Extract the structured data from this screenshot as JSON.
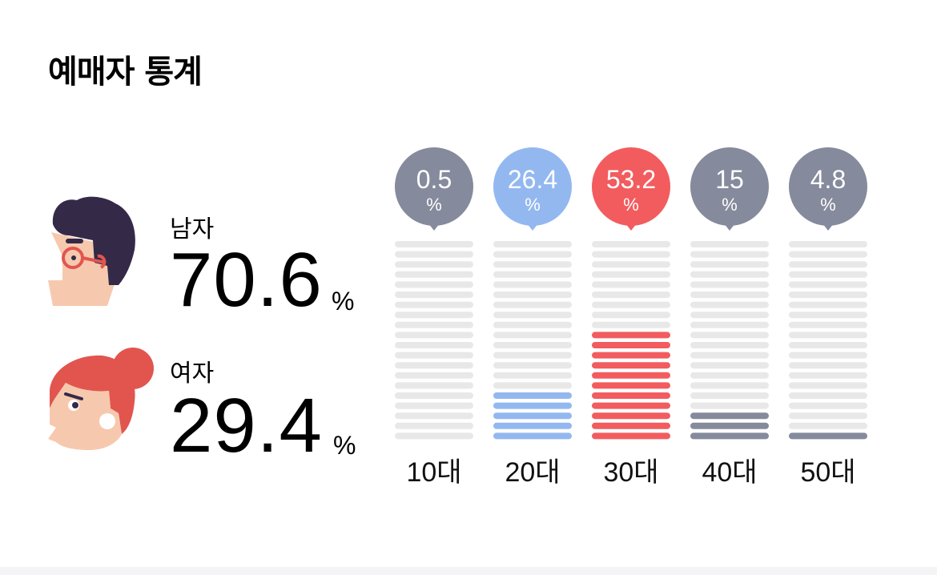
{
  "title": "예매자 통계",
  "gender": {
    "male": {
      "label": "남자",
      "value": "70.6",
      "unit": "%"
    },
    "female": {
      "label": "여자",
      "value": "29.4",
      "unit": "%"
    }
  },
  "chart_data": {
    "type": "bar",
    "categories": [
      "10대",
      "20대",
      "30대",
      "40대",
      "50대"
    ],
    "values": [
      0.5,
      26.4,
      53.2,
      15,
      4.8
    ],
    "unit": "%",
    "colors": [
      "#858a9c",
      "#93b8f0",
      "#f25c5e",
      "#858a9c",
      "#858a9c"
    ],
    "track_color": "#e8e8e8",
    "grid": false,
    "legend": "none"
  }
}
